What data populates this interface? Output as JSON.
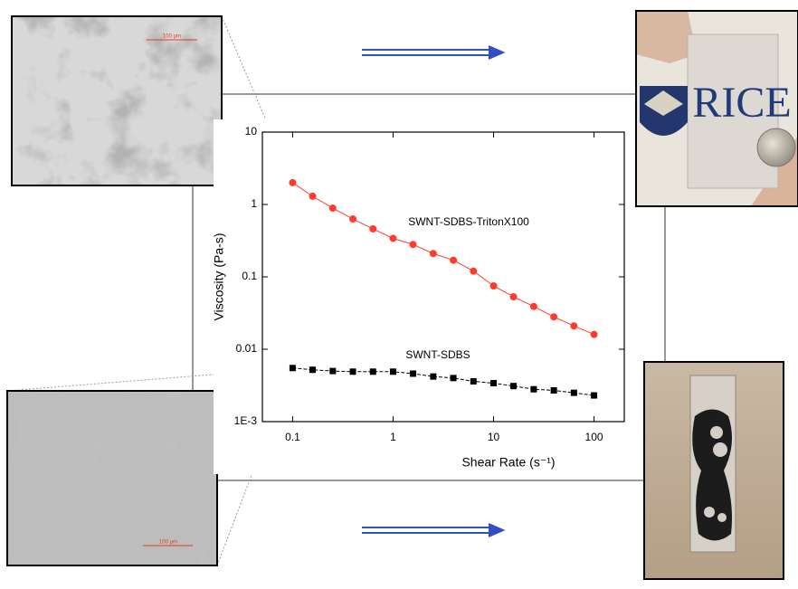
{
  "chart_data": {
    "type": "scatter",
    "x_label": "Shear Rate (s⁻¹)",
    "y_label": "Viscosity (Pa-s)",
    "log_x": true,
    "log_y": true,
    "xlim": [
      0.05,
      200
    ],
    "ylim": [
      0.001,
      10
    ],
    "xticks": [
      0.1,
      1,
      10,
      100
    ],
    "yticks": [
      {
        "value": 0.001,
        "label": "1E-3"
      },
      0.01,
      0.1,
      1,
      10
    ],
    "x": [
      0.1,
      0.158,
      0.251,
      0.398,
      0.631,
      1,
      1.58,
      2.51,
      3.98,
      6.31,
      10,
      15.8,
      25.1,
      39.8,
      63.1,
      100
    ],
    "series": [
      {
        "name": "SWNT-SDBS-TritonX100",
        "color": "#ff3b2f",
        "marker": "circle",
        "values": [
          2.0,
          1.3,
          0.89,
          0.63,
          0.46,
          0.34,
          0.28,
          0.21,
          0.17,
          0.12,
          0.075,
          0.053,
          0.039,
          0.028,
          0.021,
          0.016
        ]
      },
      {
        "name": "SWNT-SDBS",
        "color": "#000000",
        "marker": "square",
        "values": [
          0.0055,
          0.0052,
          0.005,
          0.0049,
          0.0049,
          0.0049,
          0.0046,
          0.0042,
          0.004,
          0.0036,
          0.0034,
          0.0031,
          0.0028,
          0.0027,
          0.0025,
          0.0023
        ]
      }
    ]
  },
  "images": {
    "top_left_scale": "100 μm",
    "bottom_left_scale": "100 μm",
    "photo_text": "RICE"
  }
}
